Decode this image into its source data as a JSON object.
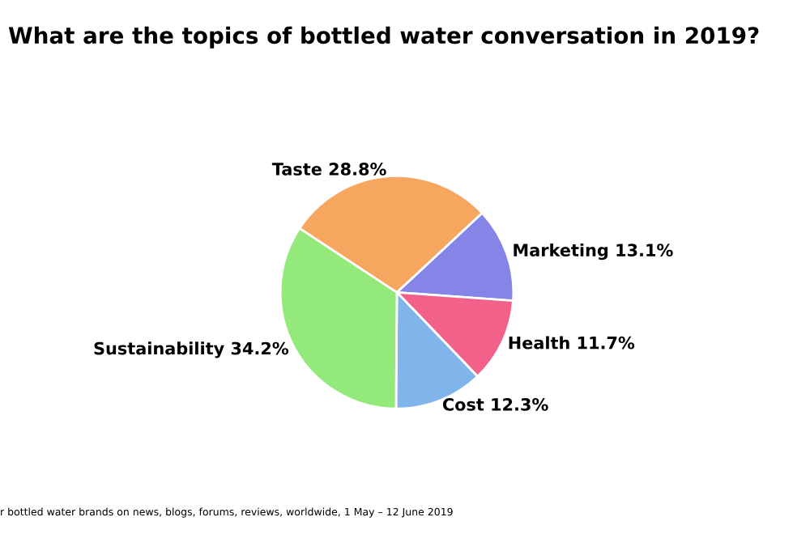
{
  "chart_data": {
    "type": "pie",
    "title": "What are the topics of bottled water conversation in 2019?",
    "categories": [
      "Marketing",
      "Health",
      "Cost",
      "Sustainability",
      "Taste"
    ],
    "values": [
      13.1,
      11.7,
      12.3,
      34.2,
      28.8
    ],
    "value_labels": [
      "13.1%",
      "11.7%",
      "12.3%",
      "34.2%",
      "28.8%"
    ],
    "colors": [
      "#8585e8",
      "#f2618a",
      "#80b4ea",
      "#93ea7b",
      "#f6a65f"
    ],
    "annotations": [
      "r bottled water brands on news, blogs, forums, reviews, worldwide, 1 May – 12 June 2019"
    ],
    "legend": false
  }
}
